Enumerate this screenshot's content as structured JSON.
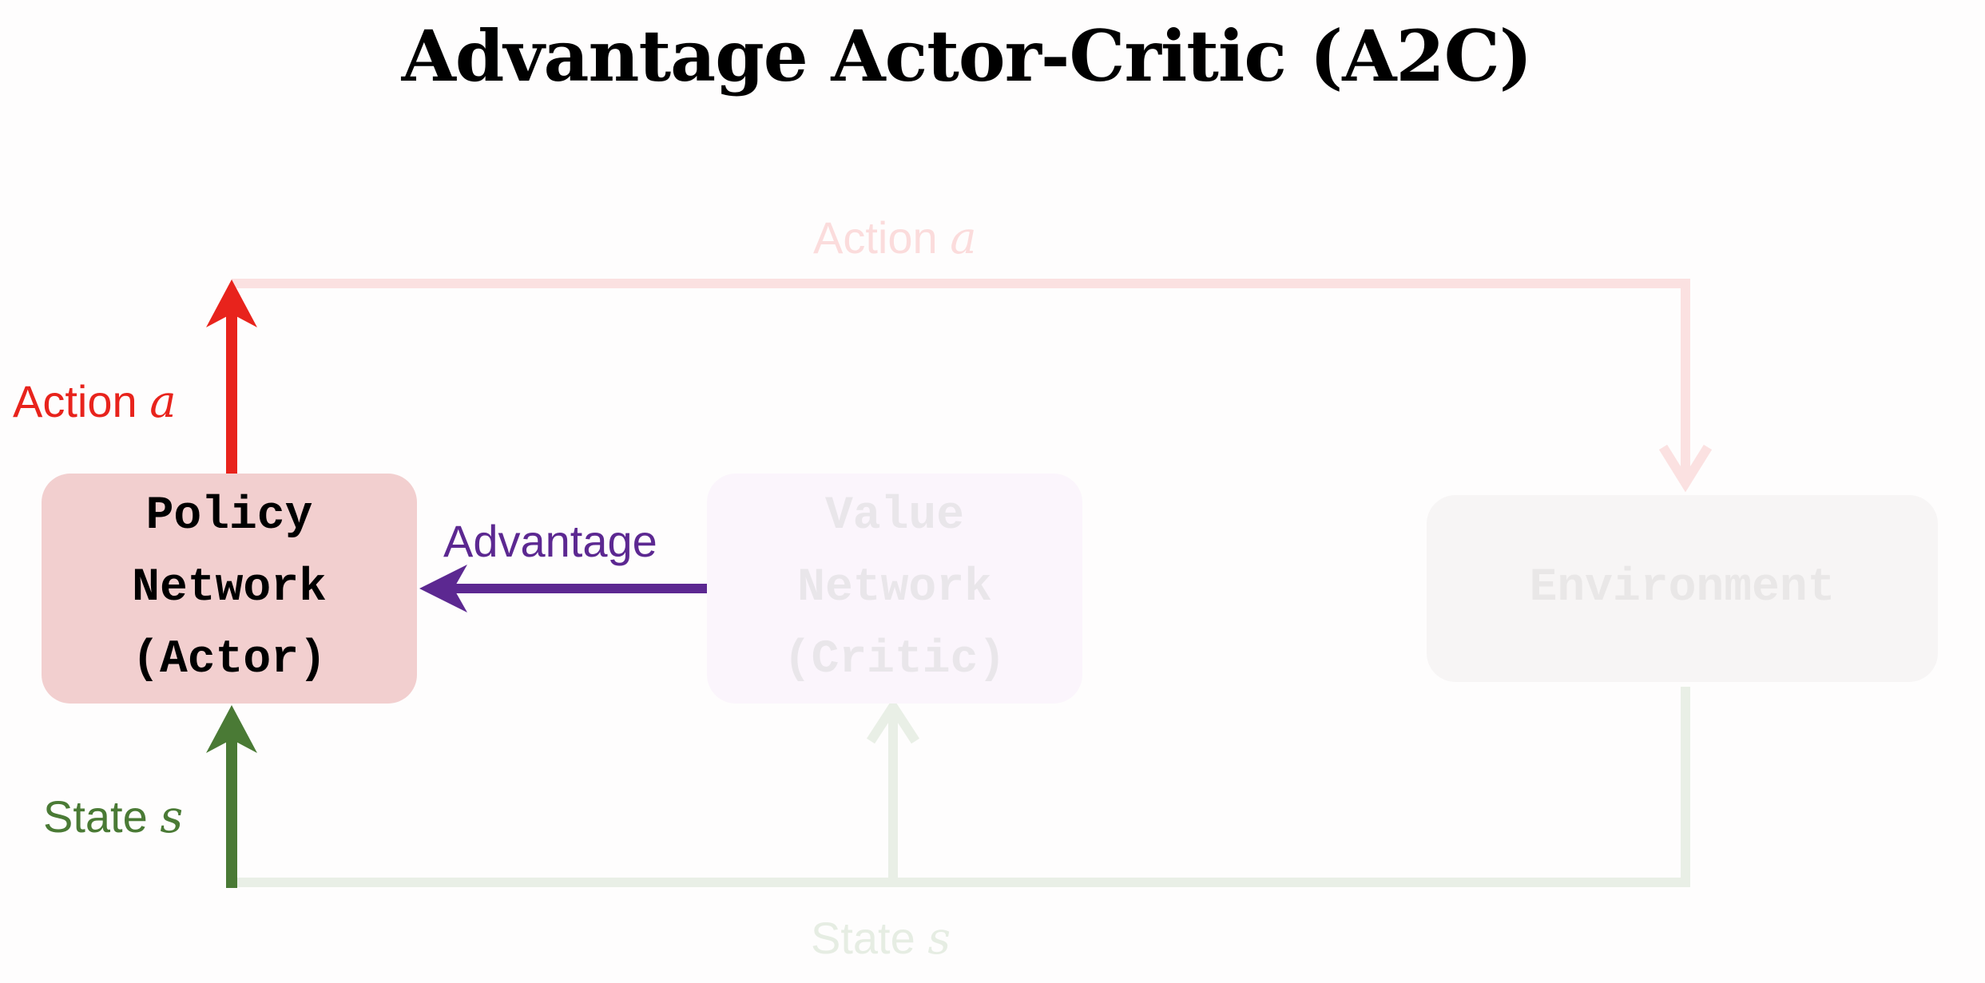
{
  "title": "Advantage Actor-Critic (A2C)",
  "nodes": {
    "policy": {
      "lines": [
        "Policy",
        "Network",
        "(Actor)"
      ]
    },
    "value": {
      "lines": [
        "Value",
        "Network",
        "(Critic)"
      ]
    },
    "environment": {
      "label": "Environment"
    }
  },
  "edges": {
    "action_top": {
      "text": "Action ",
      "var": "a"
    },
    "action_left": {
      "text": "Action ",
      "var": "a"
    },
    "advantage": {
      "text": "Advantage"
    },
    "state_left": {
      "text": "State ",
      "var": "s"
    },
    "state_bottom": {
      "text": "State ",
      "var": "s"
    }
  },
  "colors": {
    "action": "#e8231c",
    "action_faded": "#fbdcdc",
    "advantage": "#5c2891",
    "state": "#4a7a35",
    "state_faded": "#e6ede3",
    "policy_box": "#f2cfcf",
    "value_box": "#fbf5fc",
    "environment_box": "#f7f5f5"
  }
}
